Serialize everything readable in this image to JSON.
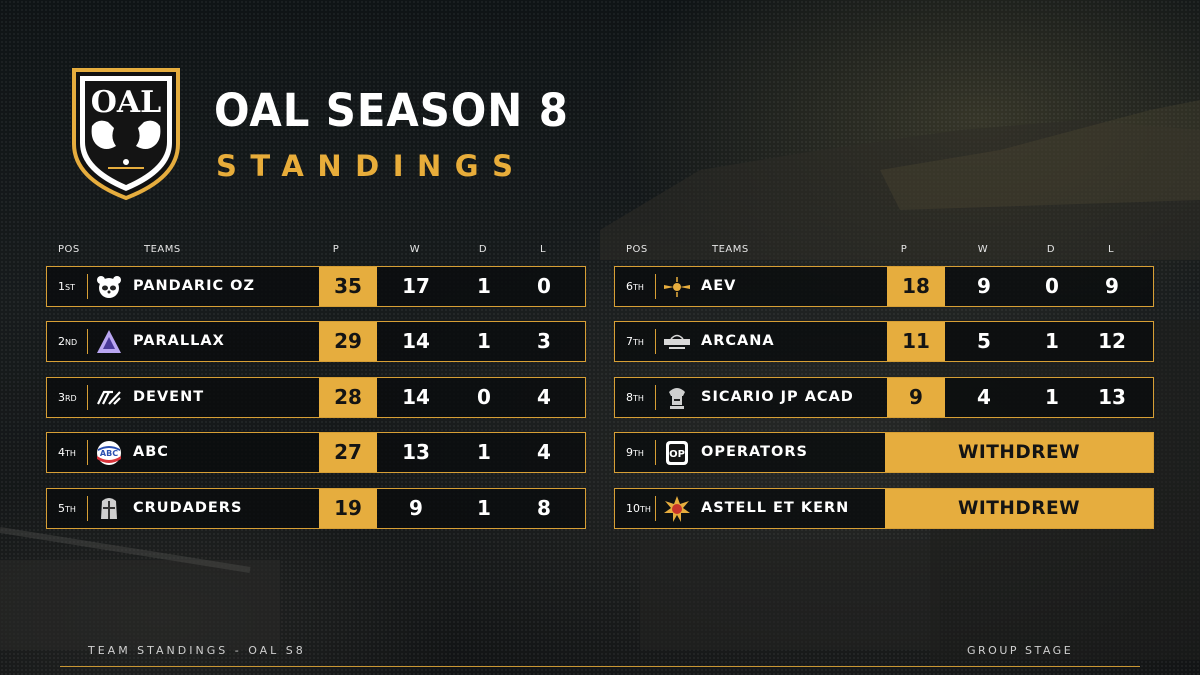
{
  "header": {
    "title": "OAL SEASON 8",
    "subtitle": "STANDINGS",
    "logo_text": "OAL"
  },
  "colors": {
    "accent": "#e6ad3e",
    "border": "#d79f35",
    "background": "#141819",
    "text": "#ffffff"
  },
  "columns": {
    "pos": "POS",
    "teams": "TEAMS",
    "p": "P",
    "w": "W",
    "d": "D",
    "l": "L"
  },
  "left_table": [
    {
      "rank": "1",
      "suffix": "ST",
      "team": "PANDARIC OZ",
      "icon": "panda-icon",
      "p": "35",
      "w": "17",
      "d": "1",
      "l": "0"
    },
    {
      "rank": "2",
      "suffix": "ND",
      "team": "PARALLAX",
      "icon": "parallax-triangle-icon",
      "p": "29",
      "w": "14",
      "d": "1",
      "l": "3"
    },
    {
      "rank": "3",
      "suffix": "RD",
      "team": "DEVENT",
      "icon": "devent-icon",
      "p": "28",
      "w": "14",
      "d": "0",
      "l": "4"
    },
    {
      "rank": "4",
      "suffix": "TH",
      "team": "ABC",
      "icon": "abc-badge-icon",
      "p": "27",
      "w": "13",
      "d": "1",
      "l": "4"
    },
    {
      "rank": "5",
      "suffix": "TH",
      "team": "CRUDADERS",
      "icon": "knight-helmet-icon",
      "p": "19",
      "w": "9",
      "d": "1",
      "l": "8"
    }
  ],
  "right_table": [
    {
      "rank": "6",
      "suffix": "TH",
      "team": "AEV",
      "icon": "winged-sun-icon",
      "p": "18",
      "w": "9",
      "d": "0",
      "l": "9"
    },
    {
      "rank": "7",
      "suffix": "TH",
      "team": "ARCANA",
      "icon": "arcana-crest-icon",
      "p": "11",
      "w": "5",
      "d": "1",
      "l": "12"
    },
    {
      "rank": "8",
      "suffix": "TH",
      "team": "SICARIO JP ACAD",
      "icon": "samurai-icon",
      "p": "9",
      "w": "4",
      "d": "1",
      "l": "13"
    },
    {
      "rank": "9",
      "suffix": "TH",
      "team": "OPERATORS",
      "icon": "op-badge-icon",
      "status": "WITHDREW"
    },
    {
      "rank": "10",
      "suffix": "TH",
      "team": "ASTELL ET KERN",
      "icon": "sun-emblem-icon",
      "status": "WITHDREW"
    }
  ],
  "footer": {
    "left": "TEAM STANDINGS - OAL S8",
    "right": "GROUP STAGE"
  }
}
